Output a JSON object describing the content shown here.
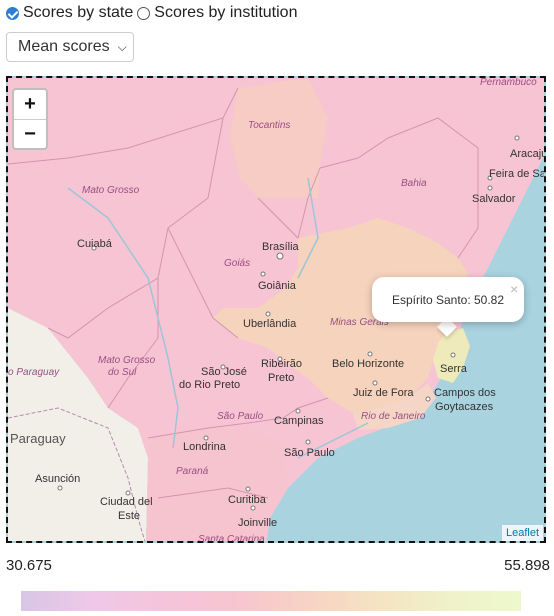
{
  "view_toggle": {
    "option_state": "Scores by state",
    "option_institution": "Scores by institution",
    "selected": "Scores by state"
  },
  "metric_select": {
    "value": "Mean scores"
  },
  "map": {
    "zoom_in": "+",
    "zoom_out": "−",
    "attribution": "Leaflet",
    "popup": {
      "text": "Espírito Santo: 50.82",
      "close": "×"
    },
    "state_labels": [
      "Tocantins",
      "Bahia",
      "Mato Grosso",
      "Goiás",
      "Minas Gerais",
      "Mato Grosso do Sul",
      "São Paulo",
      "Rio de Janeiro",
      "Paraná",
      "Santa Catarina",
      "Pernambuco"
    ],
    "city_labels": [
      "Aracaju",
      "Feira de Santana",
      "Salvador",
      "Cuiabá",
      "Brasília",
      "Goiânia",
      "Uberlândia",
      "Belo Horizonte",
      "São José do Rio Preto",
      "Ribeirão Preto",
      "Serra",
      "Juiz de Fora",
      "Campos dos Goytacazes",
      "Campinas",
      "São Paulo",
      "Londrina",
      "Curitiba",
      "Joinville",
      "Asunción",
      "Ciudad del Este"
    ],
    "country_labels": [
      "Paraguay"
    ],
    "state_colors": {
      "high": "#f7c4d3",
      "minas_gerais": "#f6d3bd",
      "espirito_santo": "#eeeab9",
      "rio": "#f5d5c5",
      "tocantins": "#f6ccc5"
    }
  },
  "legend": {
    "min": "30.675",
    "max": "55.898"
  }
}
